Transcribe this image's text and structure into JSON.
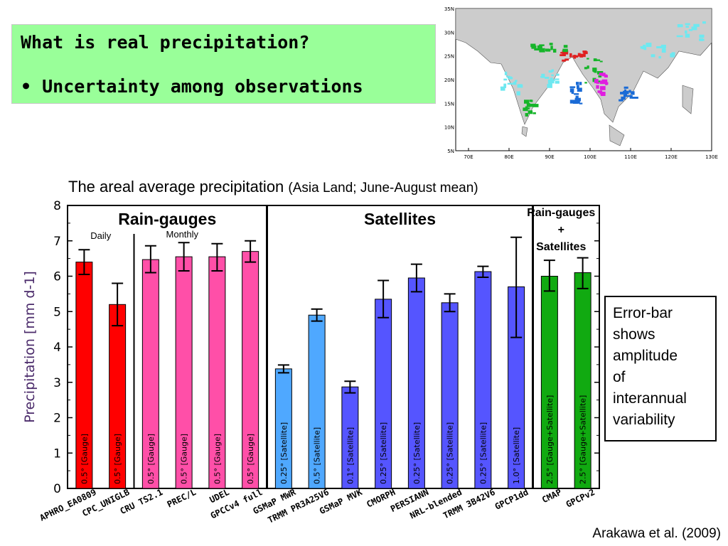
{
  "header": {
    "title": "What is real precipitation?",
    "bullet": "• Uncertainty among observations"
  },
  "chart_heading": {
    "main": "The areal average precipitation",
    "sub": "(Asia Land; June-August mean)"
  },
  "note_box": {
    "lines": [
      "Error-bar",
      "shows",
      "amplitude",
      "of",
      "interannual",
      "variability"
    ]
  },
  "citation": "Arakawa et al. (2009)",
  "map": {
    "lat_labels": [
      "35N",
      "30N",
      "25N",
      "20N",
      "15N",
      "10N",
      "5N"
    ],
    "lon_labels": [
      "70E",
      "80E",
      "90E",
      "100E",
      "110E",
      "120E",
      "130E"
    ],
    "colors": {
      "land": "#cccccc",
      "light": "#6ee8f0",
      "mid": "#1a6bd6",
      "green": "#16b52a",
      "red": "#e02020",
      "magenta": "#e01ee0",
      "ocean": "#ffffff"
    }
  },
  "chart_data": {
    "type": "bar",
    "ylabel": "Precipitation [mm d-1]",
    "ylim": [
      0,
      8
    ],
    "yticks": [
      0,
      1,
      2,
      3,
      4,
      5,
      6,
      7,
      8
    ],
    "groups": [
      {
        "label": "Rain-gauges",
        "sublabels": [
          "Daily",
          "Monthly"
        ]
      },
      {
        "label": "Satellites"
      },
      {
        "label_lines": [
          "Rain-gauges",
          "+",
          "Satellites"
        ]
      }
    ],
    "colors": {
      "gauge_daily": "#ff0000",
      "gauge_monthly": "#ff4fa8",
      "sat_light": "#4fa8ff",
      "sat": "#5555ff",
      "merged": "#11aa11"
    },
    "bars": [
      {
        "name": "APHRO_EA0809",
        "value": 6.4,
        "err": [
          6.05,
          6.75
        ],
        "res": "0.5° [Gauge]",
        "color": "gauge_daily"
      },
      {
        "name": "CPC_UNIGLB",
        "value": 5.2,
        "err": [
          4.6,
          5.8
        ],
        "res": "0.5° [Gauge]",
        "color": "gauge_daily"
      },
      {
        "name": "CRU TS2.1",
        "value": 6.47,
        "err": [
          6.1,
          6.86
        ],
        "res": "0.5° [Gauge]",
        "color": "gauge_monthly"
      },
      {
        "name": "PREC/L",
        "value": 6.55,
        "err": [
          6.15,
          6.95
        ],
        "res": "0.5° [Gauge]",
        "color": "gauge_monthly"
      },
      {
        "name": "UDEL",
        "value": 6.55,
        "err": [
          6.15,
          6.92
        ],
        "res": "0.5° [Gauge]",
        "color": "gauge_monthly"
      },
      {
        "name": "GPCCv4 full",
        "value": 6.7,
        "err": [
          6.4,
          7.0
        ],
        "res": "0.5° [Gauge]",
        "color": "gauge_monthly"
      },
      {
        "name": "GSMaP MWR",
        "value": 3.38,
        "err": [
          3.27,
          3.49
        ],
        "res": "0.25° [Satellite]",
        "color": "sat_light"
      },
      {
        "name": "TRMM PR3A25V6",
        "value": 4.9,
        "err": [
          4.73,
          5.07
        ],
        "res": "0.5° [Satellite]",
        "color": "sat_light"
      },
      {
        "name": "GSMaP MVK",
        "value": 2.87,
        "err": [
          2.7,
          3.03
        ],
        "res": "0.1° [Satellite]",
        "color": "sat"
      },
      {
        "name": "CMORPH",
        "value": 5.35,
        "err": [
          4.83,
          5.88
        ],
        "res": "0.25° [Satellite]",
        "color": "sat"
      },
      {
        "name": "PERSIANN",
        "value": 5.95,
        "err": [
          5.56,
          6.34
        ],
        "res": "0.25° [Satellite]",
        "color": "sat"
      },
      {
        "name": "NRL-blended",
        "value": 5.25,
        "err": [
          5.0,
          5.5
        ],
        "res": "0.25° [Satellite]",
        "color": "sat"
      },
      {
        "name": "TRMM 3B42V6",
        "value": 6.13,
        "err": [
          5.97,
          6.28
        ],
        "res": "0.25° [Satellite]",
        "color": "sat"
      },
      {
        "name": "GPCP1dd",
        "value": 5.7,
        "err": [
          4.27,
          7.1
        ],
        "res": "1.0° [Satellite]",
        "color": "sat"
      },
      {
        "name": "CMAP",
        "value": 6.0,
        "err": [
          5.58,
          6.45
        ],
        "res": "2.5° [Gauge+Satellite]",
        "color": "merged"
      },
      {
        "name": "GPCPv2",
        "value": 6.1,
        "err": [
          5.65,
          6.52
        ],
        "res": "2.5° [Gauge+Satellite]",
        "color": "merged"
      }
    ]
  }
}
